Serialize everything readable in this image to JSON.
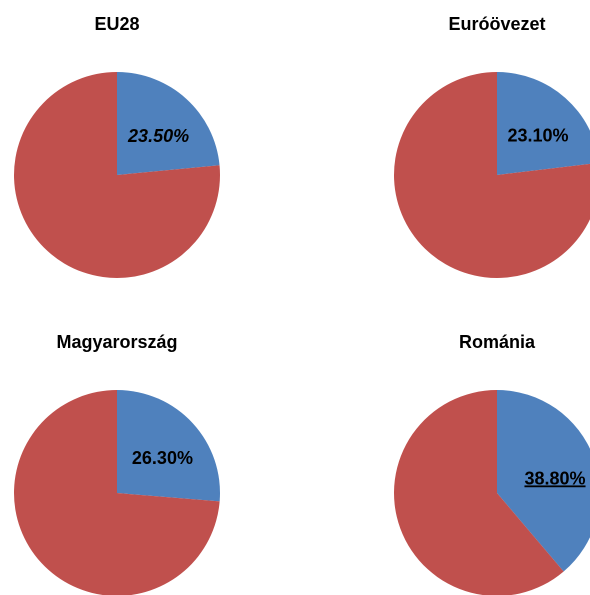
{
  "chart_data": [
    {
      "type": "pie",
      "title": "EU28",
      "values": [
        23.5,
        76.5
      ],
      "value_labels": [
        "23.50%",
        null
      ],
      "colors": [
        "#4f81bd",
        "#c0504d"
      ],
      "label_style": "italic"
    },
    {
      "type": "pie",
      "title": "Euróövezet",
      "values": [
        23.1,
        76.9
      ],
      "value_labels": [
        "23.10%",
        null
      ],
      "colors": [
        "#4f81bd",
        "#c0504d"
      ],
      "label_style": "normal"
    },
    {
      "type": "pie",
      "title": "Magyarország",
      "values": [
        26.3,
        73.7
      ],
      "value_labels": [
        "26.30%",
        null
      ],
      "colors": [
        "#4f81bd",
        "#c0504d"
      ],
      "label_style": "normal"
    },
    {
      "type": "pie",
      "title": "Románia",
      "values": [
        38.8,
        61.2
      ],
      "value_labels": [
        "38.80%",
        null
      ],
      "colors": [
        "#4f81bd",
        "#c0504d"
      ],
      "label_style": "underline"
    }
  ]
}
